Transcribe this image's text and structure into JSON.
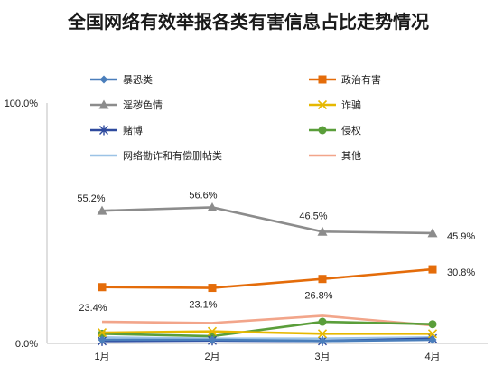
{
  "chart_data": {
    "type": "line",
    "title": "全国网络有效举报各类有害信息占比走势情况",
    "categories": [
      "1月",
      "2月",
      "3月",
      "4月"
    ],
    "ylim": [
      0,
      100
    ],
    "y_ticks": [
      "0.0%",
      "100.0%"
    ],
    "grid": false,
    "legend_position": "top",
    "series": [
      {
        "name": "暴恐类",
        "values": [
          1.5,
          1.5,
          1.0,
          1.5
        ],
        "color": "#4a7ebb",
        "marker": "diamond"
      },
      {
        "name": "政治有害",
        "values": [
          23.4,
          23.1,
          26.8,
          30.8
        ],
        "color": "#e46c0a",
        "marker": "square"
      },
      {
        "name": "淫秽色情",
        "values": [
          55.2,
          56.6,
          46.5,
          45.9
        ],
        "color": "#8c8c8c",
        "marker": "triangle"
      },
      {
        "name": "诈骗",
        "values": [
          4.5,
          5.0,
          4.0,
          4.0
        ],
        "color": "#e6b800",
        "marker": "x"
      },
      {
        "name": "赌博",
        "values": [
          1.0,
          1.2,
          1.0,
          2.0
        ],
        "color": "#2e4a9e",
        "marker": "star"
      },
      {
        "name": "侵权",
        "values": [
          4.0,
          3.0,
          9.0,
          8.0
        ],
        "color": "#5a9e3a",
        "marker": "circle"
      },
      {
        "name": "网络勘诈和有偿删帖类",
        "values": [
          2.5,
          2.0,
          2.0,
          2.5
        ],
        "color": "#9cc3e6",
        "marker": "none"
      },
      {
        "name": "其他",
        "values": [
          9.0,
          8.5,
          11.5,
          7.5
        ],
        "color": "#f2a58a",
        "marker": "none"
      }
    ],
    "annotations": [
      {
        "series": "淫秽色情",
        "index": 0,
        "text": "55.2%"
      },
      {
        "series": "淫秽色情",
        "index": 1,
        "text": "56.6%"
      },
      {
        "series": "淫秽色情",
        "index": 2,
        "text": "46.5%"
      },
      {
        "series": "淫秽色情",
        "index": 3,
        "text": "45.9%"
      },
      {
        "series": "政治有害",
        "index": 0,
        "text": "23.4%"
      },
      {
        "series": "政治有害",
        "index": 1,
        "text": "23.1%"
      },
      {
        "series": "政治有害",
        "index": 2,
        "text": "26.8%"
      },
      {
        "series": "政治有害",
        "index": 3,
        "text": "30.8%"
      }
    ]
  }
}
